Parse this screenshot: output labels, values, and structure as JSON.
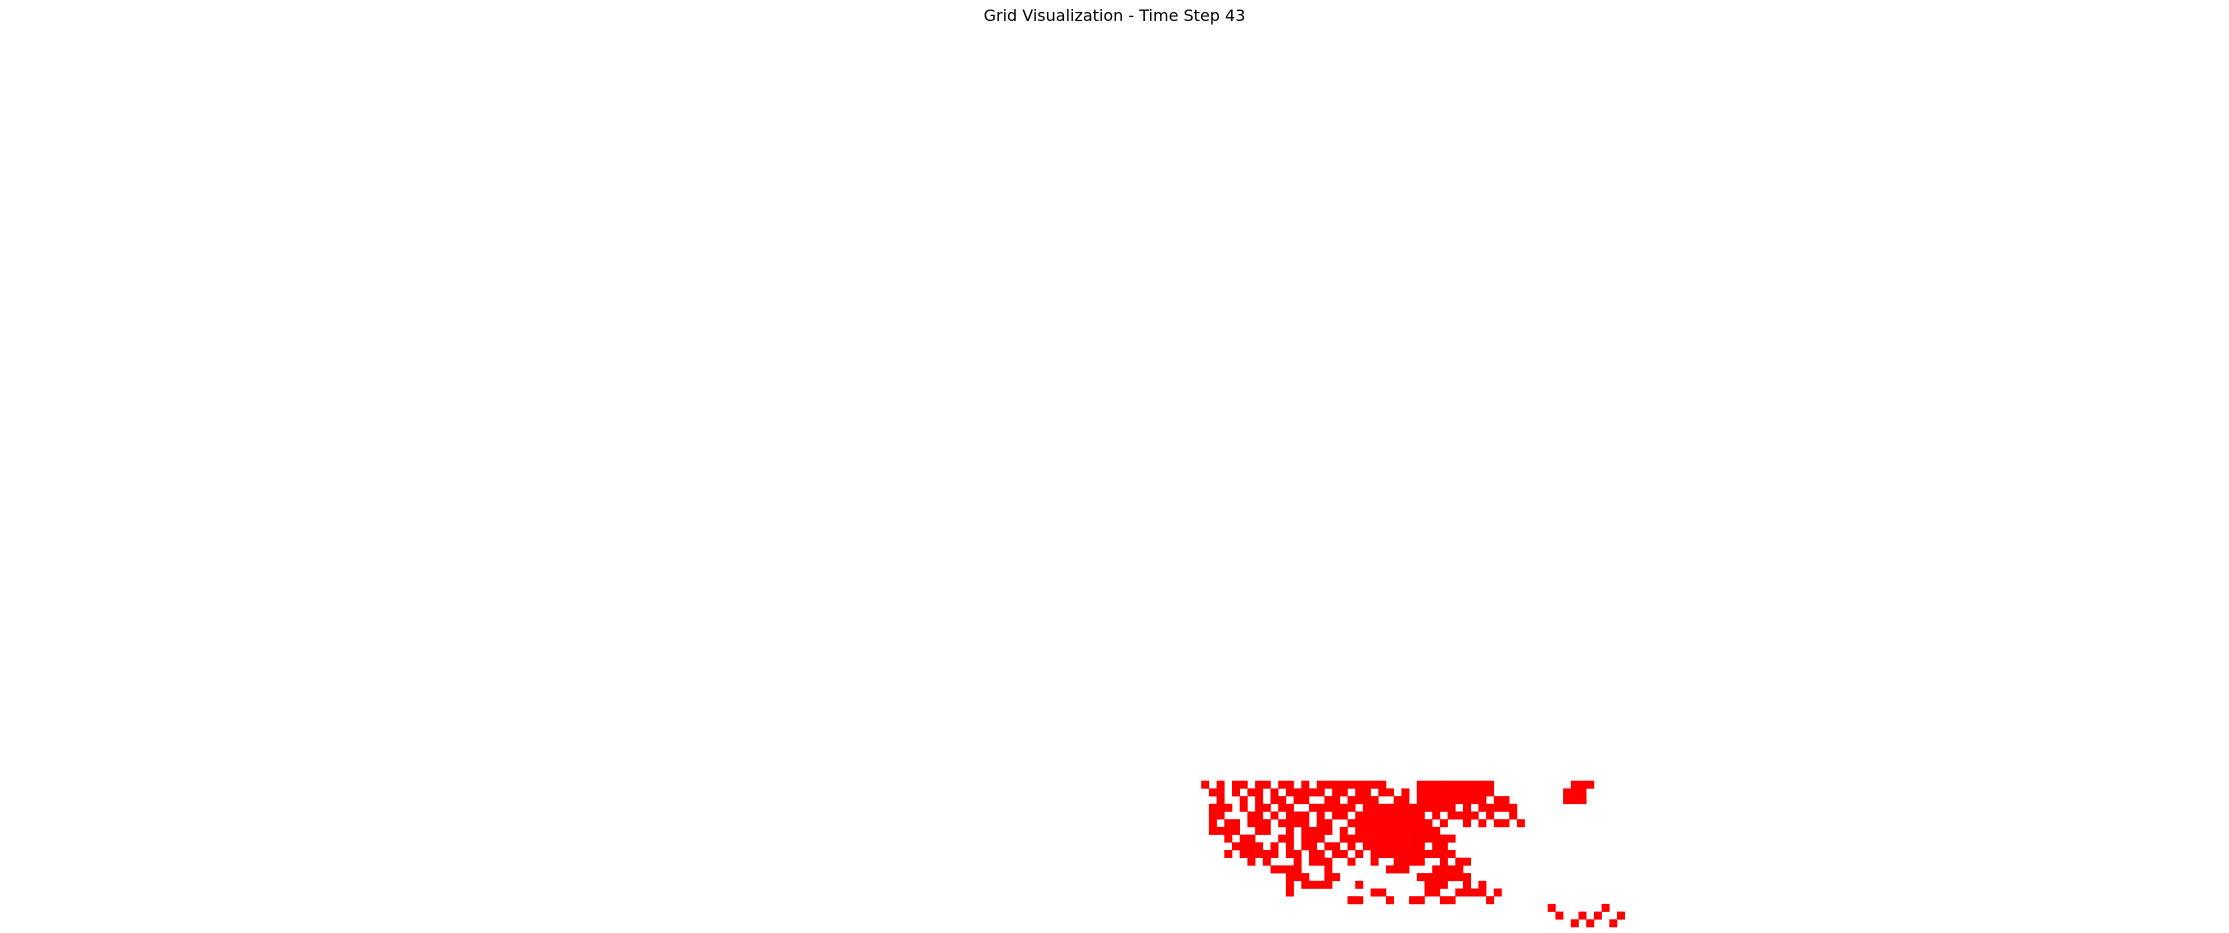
{
  "title": "Grid Visualization - Time Step 43",
  "colors": {
    "background": "#ffffff",
    "cell_fill": "#ff0000"
  },
  "chart_data": {
    "type": "heatmap",
    "title": "Grid Visualization - Time Step 43",
    "time_step": 43,
    "grid": {
      "columns": 170,
      "rows": 80
    },
    "axes_visible": false,
    "active_cells": [
      [
        204,
        0
      ],
      [
        206,
        0
      ],
      [
        209,
        0
      ],
      [
        202,
        1
      ],
      [
        205,
        1
      ],
      [
        207,
        1
      ],
      [
        210,
        1
      ],
      [
        201,
        2
      ],
      [
        208,
        2
      ],
      [
        175,
        3
      ],
      [
        176,
        3
      ],
      [
        180,
        3
      ],
      [
        183,
        3
      ],
      [
        184,
        3
      ],
      [
        187,
        3
      ],
      [
        188,
        3
      ],
      [
        193,
        3
      ],
      [
        167,
        4
      ],
      [
        178,
        4
      ],
      [
        179,
        4
      ],
      [
        185,
        4
      ],
      [
        186,
        4
      ],
      [
        189,
        4
      ],
      [
        190,
        4
      ],
      [
        191,
        4
      ],
      [
        192,
        4
      ],
      [
        194,
        4
      ],
      [
        167,
        5
      ],
      [
        169,
        5
      ],
      [
        170,
        5
      ],
      [
        171,
        5
      ],
      [
        172,
        5
      ],
      [
        176,
        5
      ],
      [
        185,
        5
      ],
      [
        186,
        5
      ],
      [
        187,
        5
      ],
      [
        190,
        5
      ],
      [
        192,
        5
      ],
      [
        167,
        6
      ],
      [
        168,
        6
      ],
      [
        169,
        6
      ],
      [
        172,
        6
      ],
      [
        173,
        6
      ],
      [
        184,
        6
      ],
      [
        185,
        6
      ],
      [
        186,
        6
      ],
      [
        187,
        6
      ],
      [
        188,
        6
      ],
      [
        189,
        6
      ],
      [
        190,
        6
      ],
      [
        165,
        7
      ],
      [
        166,
        7
      ],
      [
        167,
        7
      ],
      [
        168,
        7
      ],
      [
        172,
        7
      ],
      [
        180,
        7
      ],
      [
        181,
        7
      ],
      [
        182,
        7
      ],
      [
        186,
        7
      ],
      [
        187,
        7
      ],
      [
        188,
        7
      ],
      [
        189,
        7
      ],
      [
        162,
        8
      ],
      [
        164,
        8
      ],
      [
        168,
        8
      ],
      [
        170,
        8
      ],
      [
        171,
        8
      ],
      [
        172,
        8
      ],
      [
        175,
        8
      ],
      [
        178,
        8
      ],
      [
        181,
        8
      ],
      [
        182,
        8
      ],
      [
        183,
        8
      ],
      [
        184,
        8
      ],
      [
        187,
        8
      ],
      [
        189,
        8
      ],
      [
        190,
        8
      ],
      [
        159,
        9
      ],
      [
        161,
        9
      ],
      [
        162,
        9
      ],
      [
        163,
        9
      ],
      [
        164,
        9
      ],
      [
        165,
        9
      ],
      [
        167,
        9
      ],
      [
        168,
        9
      ],
      [
        170,
        9
      ],
      [
        171,
        9
      ],
      [
        173,
        9
      ],
      [
        174,
        9
      ],
      [
        176,
        9
      ],
      [
        178,
        9
      ],
      [
        179,
        9
      ],
      [
        180,
        9
      ],
      [
        181,
        9
      ],
      [
        182,
        9
      ],
      [
        183,
        9
      ],
      [
        184,
        9
      ],
      [
        185,
        9
      ],
      [
        186,
        9
      ],
      [
        187,
        9
      ],
      [
        188,
        9
      ],
      [
        160,
        10
      ],
      [
        161,
        10
      ],
      [
        162,
        10
      ],
      [
        163,
        10
      ],
      [
        165,
        10
      ],
      [
        167,
        10
      ],
      [
        169,
        10
      ],
      [
        170,
        10
      ],
      [
        172,
        10
      ],
      [
        173,
        10
      ],
      [
        175,
        10
      ],
      [
        177,
        10
      ],
      [
        178,
        10
      ],
      [
        179,
        10
      ],
      [
        180,
        10
      ],
      [
        181,
        10
      ],
      [
        182,
        10
      ],
      [
        183,
        10
      ],
      [
        184,
        10
      ],
      [
        186,
        10
      ],
      [
        187,
        10
      ],
      [
        159,
        11
      ],
      [
        161,
        11
      ],
      [
        162,
        11
      ],
      [
        166,
        11
      ],
      [
        167,
        11
      ],
      [
        169,
        11
      ],
      [
        170,
        11
      ],
      [
        171,
        11
      ],
      [
        174,
        11
      ],
      [
        175,
        11
      ],
      [
        176,
        11
      ],
      [
        177,
        11
      ],
      [
        178,
        11
      ],
      [
        179,
        11
      ],
      [
        180,
        11
      ],
      [
        181,
        11
      ],
      [
        182,
        11
      ],
      [
        183,
        11
      ],
      [
        184,
        11
      ],
      [
        185,
        11
      ],
      [
        186,
        11
      ],
      [
        187,
        11
      ],
      [
        188,
        11
      ],
      [
        157,
        12
      ],
      [
        158,
        12
      ],
      [
        159,
        12
      ],
      [
        160,
        12
      ],
      [
        163,
        12
      ],
      [
        164,
        12
      ],
      [
        167,
        12
      ],
      [
        169,
        12
      ],
      [
        170,
        12
      ],
      [
        171,
        12
      ],
      [
        172,
        12
      ],
      [
        174,
        12
      ],
      [
        176,
        12
      ],
      [
        177,
        12
      ],
      [
        178,
        12
      ],
      [
        179,
        12
      ],
      [
        180,
        12
      ],
      [
        181,
        12
      ],
      [
        182,
        12
      ],
      [
        183,
        12
      ],
      [
        184,
        12
      ],
      [
        185,
        12
      ],
      [
        186,
        12
      ],
      [
        157,
        13
      ],
      [
        159,
        13
      ],
      [
        160,
        13
      ],
      [
        162,
        13
      ],
      [
        163,
        13
      ],
      [
        164,
        13
      ],
      [
        166,
        13
      ],
      [
        167,
        13
      ],
      [
        168,
        13
      ],
      [
        169,
        13
      ],
      [
        171,
        13
      ],
      [
        172,
        13
      ],
      [
        175,
        13
      ],
      [
        176,
        13
      ],
      [
        177,
        13
      ],
      [
        178,
        13
      ],
      [
        179,
        13
      ],
      [
        180,
        13
      ],
      [
        181,
        13
      ],
      [
        182,
        13
      ],
      [
        183,
        13
      ],
      [
        184,
        13
      ],
      [
        185,
        13
      ],
      [
        187,
        13
      ],
      [
        190,
        13
      ],
      [
        192,
        13
      ],
      [
        194,
        13
      ],
      [
        195,
        13
      ],
      [
        197,
        13
      ],
      [
        157,
        14
      ],
      [
        158,
        14
      ],
      [
        162,
        14
      ],
      [
        163,
        14
      ],
      [
        165,
        14
      ],
      [
        167,
        14
      ],
      [
        168,
        14
      ],
      [
        169,
        14
      ],
      [
        171,
        14
      ],
      [
        173,
        14
      ],
      [
        174,
        14
      ],
      [
        176,
        14
      ],
      [
        177,
        14
      ],
      [
        178,
        14
      ],
      [
        179,
        14
      ],
      [
        180,
        14
      ],
      [
        181,
        14
      ],
      [
        182,
        14
      ],
      [
        183,
        14
      ],
      [
        184,
        14
      ],
      [
        186,
        14
      ],
      [
        188,
        14
      ],
      [
        189,
        14
      ],
      [
        190,
        14
      ],
      [
        191,
        14
      ],
      [
        193,
        14
      ],
      [
        196,
        14
      ],
      [
        157,
        15
      ],
      [
        158,
        15
      ],
      [
        159,
        15
      ],
      [
        161,
        15
      ],
      [
        163,
        15
      ],
      [
        164,
        15
      ],
      [
        166,
        15
      ],
      [
        167,
        15
      ],
      [
        170,
        15
      ],
      [
        171,
        15
      ],
      [
        172,
        15
      ],
      [
        173,
        15
      ],
      [
        174,
        15
      ],
      [
        175,
        15
      ],
      [
        177,
        15
      ],
      [
        178,
        15
      ],
      [
        179,
        15
      ],
      [
        180,
        15
      ],
      [
        181,
        15
      ],
      [
        182,
        15
      ],
      [
        183,
        15
      ],
      [
        184,
        15
      ],
      [
        185,
        15
      ],
      [
        186,
        15
      ],
      [
        187,
        15
      ],
      [
        188,
        15
      ],
      [
        190,
        15
      ],
      [
        192,
        15
      ],
      [
        193,
        15
      ],
      [
        194,
        15
      ],
      [
        195,
        15
      ],
      [
        196,
        15
      ],
      [
        158,
        16
      ],
      [
        161,
        16
      ],
      [
        163,
        16
      ],
      [
        165,
        16
      ],
      [
        166,
        16
      ],
      [
        168,
        16
      ],
      [
        169,
        16
      ],
      [
        172,
        16
      ],
      [
        173,
        16
      ],
      [
        175,
        16
      ],
      [
        176,
        16
      ],
      [
        177,
        16
      ],
      [
        178,
        16
      ],
      [
        181,
        16
      ],
      [
        182,
        16
      ],
      [
        184,
        16
      ],
      [
        185,
        16
      ],
      [
        186,
        16
      ],
      [
        187,
        16
      ],
      [
        188,
        16
      ],
      [
        189,
        16
      ],
      [
        190,
        16
      ],
      [
        191,
        16
      ],
      [
        192,
        16
      ],
      [
        194,
        16
      ],
      [
        195,
        16
      ],
      [
        203,
        16
      ],
      [
        204,
        16
      ],
      [
        205,
        16
      ],
      [
        157,
        17
      ],
      [
        158,
        17
      ],
      [
        160,
        17
      ],
      [
        162,
        17
      ],
      [
        163,
        17
      ],
      [
        165,
        17
      ],
      [
        167,
        17
      ],
      [
        168,
        17
      ],
      [
        169,
        17
      ],
      [
        170,
        17
      ],
      [
        171,
        17
      ],
      [
        173,
        17
      ],
      [
        174,
        17
      ],
      [
        176,
        17
      ],
      [
        177,
        17
      ],
      [
        179,
        17
      ],
      [
        180,
        17
      ],
      [
        182,
        17
      ],
      [
        184,
        17
      ],
      [
        185,
        17
      ],
      [
        186,
        17
      ],
      [
        187,
        17
      ],
      [
        188,
        17
      ],
      [
        189,
        17
      ],
      [
        190,
        17
      ],
      [
        191,
        17
      ],
      [
        192,
        17
      ],
      [
        193,
        17
      ],
      [
        203,
        17
      ],
      [
        204,
        17
      ],
      [
        205,
        17
      ],
      [
        156,
        18
      ],
      [
        158,
        18
      ],
      [
        160,
        18
      ],
      [
        161,
        18
      ],
      [
        163,
        18
      ],
      [
        164,
        18
      ],
      [
        166,
        18
      ],
      [
        167,
        18
      ],
      [
        169,
        18
      ],
      [
        171,
        18
      ],
      [
        172,
        18
      ],
      [
        173,
        18
      ],
      [
        174,
        18
      ],
      [
        175,
        18
      ],
      [
        176,
        18
      ],
      [
        177,
        18
      ],
      [
        178,
        18
      ],
      [
        179,
        18
      ],
      [
        184,
        18
      ],
      [
        185,
        18
      ],
      [
        186,
        18
      ],
      [
        187,
        18
      ],
      [
        188,
        18
      ],
      [
        189,
        18
      ],
      [
        190,
        18
      ],
      [
        191,
        18
      ],
      [
        192,
        18
      ],
      [
        193,
        18
      ],
      [
        204,
        18
      ],
      [
        205,
        18
      ],
      [
        206,
        18
      ]
    ]
  }
}
